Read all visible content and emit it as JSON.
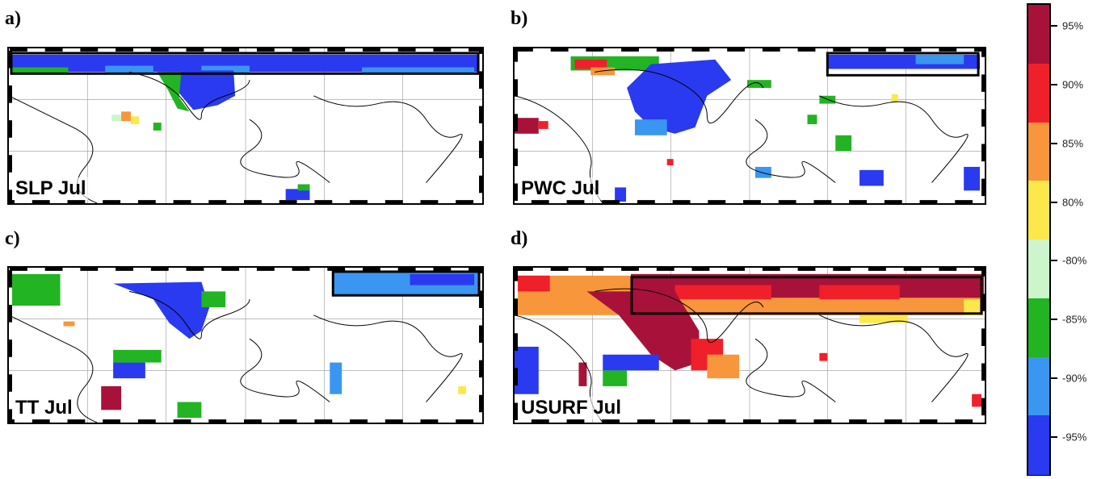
{
  "panels": [
    {
      "letter": "a)",
      "label": "SLP Jul"
    },
    {
      "letter": "b)",
      "label": "PWC Jul"
    },
    {
      "letter": "c)",
      "label": "TT Jul"
    },
    {
      "letter": "d)",
      "label": "USURF Jul"
    }
  ],
  "colorbar": {
    "labels": [
      "95%",
      "90%",
      "85%",
      "80%",
      "-80%",
      "-85%",
      "-90%",
      "-95%"
    ],
    "colors": [
      "#a8123a",
      "#f0202a",
      "#f7963a",
      "#fce84a",
      "#ccf5cc",
      "#22b422",
      "#3a96f0",
      "#2a3af0"
    ]
  }
}
